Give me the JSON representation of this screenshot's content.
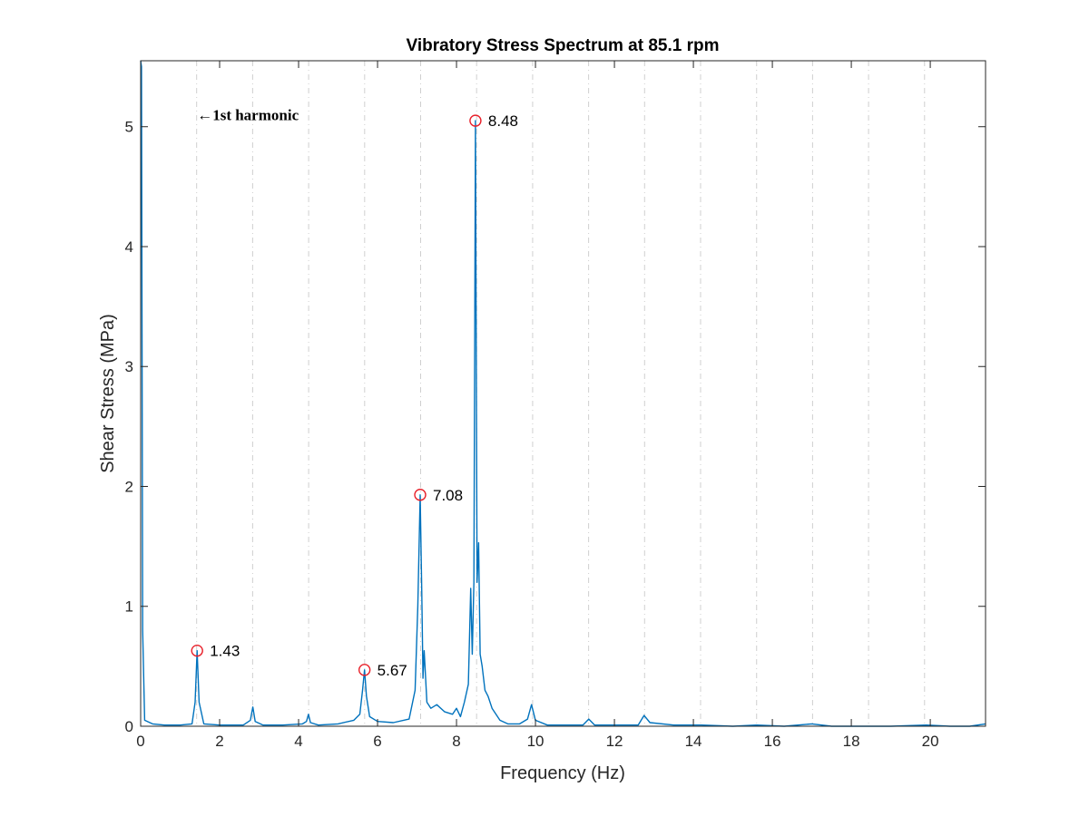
{
  "chart_data": {
    "type": "line",
    "title": "Vibratory Stress Spectrum at 85.1 rpm",
    "xlabel": "Frequency (Hz)",
    "ylabel": "Shear Stress (MPa)",
    "xlim": [
      0,
      21.4
    ],
    "ylim": [
      0,
      5.55
    ],
    "x_ticks": [
      0,
      2,
      4,
      6,
      8,
      10,
      12,
      14,
      16,
      18,
      20
    ],
    "y_ticks": [
      0,
      1,
      2,
      3,
      4,
      5
    ],
    "vertical_reference_lines": [
      1.418,
      2.836,
      4.255,
      5.673,
      7.091,
      8.509,
      9.928,
      11.346,
      12.764,
      14.182,
      15.601,
      17.019,
      18.437,
      19.855
    ],
    "grid": "vertical dashed reference lines",
    "series": [
      {
        "color": "#0072BD",
        "x": [
          0,
          0.02,
          0.05,
          0.1,
          0.3,
          0.6,
          1.0,
          1.3,
          1.38,
          1.43,
          1.48,
          1.6,
          2.0,
          2.6,
          2.78,
          2.84,
          2.9,
          3.1,
          3.6,
          4.1,
          4.2,
          4.25,
          4.3,
          4.5,
          5.0,
          5.4,
          5.55,
          5.62,
          5.67,
          5.72,
          5.8,
          6.0,
          6.4,
          6.8,
          6.95,
          7.02,
          7.08,
          7.12,
          7.15,
          7.18,
          7.25,
          7.35,
          7.5,
          7.7,
          7.9,
          8.0,
          8.1,
          8.2,
          8.3,
          8.36,
          8.4,
          8.44,
          8.48,
          8.52,
          8.56,
          8.6,
          8.65,
          8.72,
          8.8,
          8.9,
          9.1,
          9.3,
          9.6,
          9.8,
          9.9,
          10.0,
          10.3,
          10.8,
          11.2,
          11.35,
          11.5,
          12.0,
          12.6,
          12.75,
          12.9,
          13.5,
          14.2,
          15.0,
          15.6,
          16.3,
          17.0,
          17.5,
          18.4,
          19.0,
          19.9,
          20.5,
          21.0,
          21.4
        ],
        "values": [
          5.55,
          5.5,
          0.8,
          0.05,
          0.02,
          0.01,
          0.01,
          0.02,
          0.2,
          0.63,
          0.2,
          0.02,
          0.01,
          0.01,
          0.05,
          0.16,
          0.04,
          0.01,
          0.01,
          0.02,
          0.04,
          0.1,
          0.03,
          0.01,
          0.02,
          0.05,
          0.1,
          0.3,
          0.47,
          0.25,
          0.08,
          0.04,
          0.03,
          0.06,
          0.3,
          1.0,
          1.93,
          1.1,
          0.4,
          0.63,
          0.2,
          0.15,
          0.18,
          0.12,
          0.1,
          0.15,
          0.08,
          0.2,
          0.35,
          1.15,
          0.6,
          1.2,
          5.05,
          1.2,
          1.53,
          0.6,
          0.5,
          0.3,
          0.25,
          0.15,
          0.05,
          0.02,
          0.02,
          0.06,
          0.18,
          0.05,
          0.01,
          0.01,
          0.01,
          0.06,
          0.01,
          0.01,
          0.01,
          0.09,
          0.03,
          0.01,
          0.01,
          0.0,
          0.01,
          0.0,
          0.02,
          0.0,
          0.0,
          0.0,
          0.01,
          0.0,
          0.0,
          0.02
        ]
      }
    ],
    "peaks": [
      {
        "x": 1.43,
        "y": 0.63,
        "label": "1.43"
      },
      {
        "x": 5.67,
        "y": 0.47,
        "label": "5.67"
      },
      {
        "x": 7.08,
        "y": 1.93,
        "label": "7.08"
      },
      {
        "x": 8.48,
        "y": 5.05,
        "label": "8.48"
      }
    ],
    "annotations": [
      {
        "text": "←1st harmonic",
        "x": 1.43,
        "y": 5.1
      }
    ]
  }
}
